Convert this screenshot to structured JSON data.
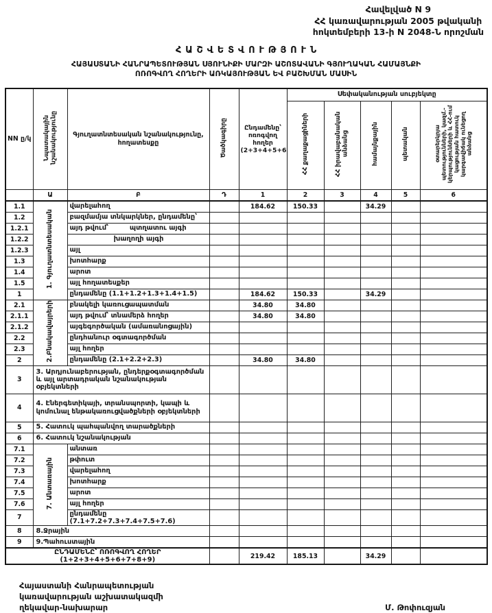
{
  "doc": {
    "appendix_line1": "Հավելված N  9",
    "appendix_line2": "ՀՀ կառավարության 2005 թվականի",
    "appendix_line3": "հոկտեմբերի 13-ի N 2048-Ն որոշման",
    "title": "ՀԱՇՎԵՏՎՈՒԹՅՈՒՆ",
    "subtitle_line1": "ՀԱՅԱՍՏԱՆԻ ՀԱՆՐԱՊԵՏՈՒԹՅԱՆ ՍՅՈՒՆԻՔԻ ՄԱՐԶԻ ԱՇՈՏԱՎԱՆԻ ԳՅՈՒՂԱԿԱՆ ՀԱՄԱՅՆՔԻ",
    "subtitle_line2": "ՈՌՈԳՎՈՂ ՀՈՂԵՐԻ ԱՌԿԱՅՈՒԹՅԱՆ ԵՎ ԲԱՇԽՄԱՆ ՄԱՍԻՆ"
  },
  "table": {
    "headers": {
      "nn": "NN ը/կ",
      "purpose": "Նպատակային նշանակությունը",
      "landtype": "Գյուղատնտեսական նշանակությունը, հողատեսքը",
      "code": "Ծածկագիրը",
      "total": "Ընդամենը՝ ոռոգվող հողեր (2+3+4+5+6)",
      "ownership": "Սեփականության սուբյեկտը",
      "own1": "ՀՀ քաղաքացիների",
      "own2": "ՀՀ իրավաբանական անձանց",
      "own3": "համայնքային",
      "own4": "պետական",
      "own5": "օտարերկրյա պետությունների, կազմ.-կերպությունների և ՀՀ-ում կացության հատուկ կարգավիճակ ունեցող անձանց"
    },
    "letter_row": [
      "",
      "Ա",
      "Բ",
      "Դ",
      "1",
      "2",
      "3",
      "4",
      "5",
      "6"
    ],
    "rows": [
      {
        "no": "1.1",
        "l": "վարելահող",
        "sec": {
          "l": "1. Գյուղատնտեսական",
          "span": 9
        },
        "v": [
          "",
          "184.62",
          "150.33",
          "",
          "34.29",
          "",
          ""
        ]
      },
      {
        "no": "1.2",
        "l": "բազմամյա տնկարկներ, ընդամենը՝"
      },
      {
        "no": "1.2.1",
        "l": "այդ թվում՝",
        "l2": "պտղատու այգի"
      },
      {
        "no": "1.2.2",
        "l": "",
        "l2": "խաղողի այգի"
      },
      {
        "no": "1.2.3",
        "l": "այլ"
      },
      {
        "no": "1.3",
        "l": "խոտհարք"
      },
      {
        "no": "1.4",
        "l": "արոտ"
      },
      {
        "no": "1.5",
        "l": "այլ հողատեսքեր"
      },
      {
        "no": "1",
        "l": "ընդամենը (1.1+1.2+1.3+1.4+1.5)",
        "v": [
          "",
          "184.62",
          "150.33",
          "",
          "34.29",
          "",
          ""
        ]
      },
      {
        "no": "2.1",
        "l": "բնակելի կառուցապատման",
        "sec": {
          "l": "2.Բնակավայրերի",
          "span": 6
        },
        "v": [
          "",
          "34.80",
          "34.80",
          "",
          "",
          "",
          ""
        ]
      },
      {
        "no": "2.1.1",
        "l": "այդ թվում՝ տնամերձ հողեր",
        "v": [
          "",
          "34.80",
          "34.80",
          "",
          "",
          "",
          ""
        ]
      },
      {
        "no": "2.1.2",
        "l": "այգեգործական (ամառանոցային)"
      },
      {
        "no": "2.2",
        "l": "ընդհանուր օգտագործման"
      },
      {
        "no": "2.3",
        "l": "այլ հողեր"
      },
      {
        "no": "2",
        "l": "ընդամենը (2.1+2.2+2.3)",
        "v": [
          "",
          "34.80",
          "34.80",
          "",
          "",
          "",
          ""
        ]
      },
      {
        "no": "3",
        "t": "wide",
        "tall": true,
        "l": "3. Արդյունաբերության, ընդերքօգտագործման  և այլ արտադրական նշանակության օբյեկտների"
      },
      {
        "no": "4",
        "t": "wide",
        "tall": true,
        "l": "4. Էներգետիկայի, տրանսպորտի, կապի և կոմունալ ենթակառուցվածքների օբյեկտների"
      },
      {
        "no": "5",
        "t": "wide",
        "l": "5. Հատուկ պահպանվող տարածքների"
      },
      {
        "no": "6",
        "t": "wide",
        "l": "6. Հատուկ նշանակության"
      },
      {
        "no": "7.1",
        "l": "անտառ",
        "sec": {
          "l": "7. Անտառային",
          "span": 7
        }
      },
      {
        "no": "7.2",
        "l": "թփուտ"
      },
      {
        "no": "7.3",
        "l": "վարելահող"
      },
      {
        "no": "7.4",
        "l": "խոտհարք"
      },
      {
        "no": "7.5",
        "l": "արոտ"
      },
      {
        "no": "7.6",
        "l": "այլ հողեր"
      },
      {
        "no": "7",
        "l": "ընդամենը (7.1+7.2+7.3+7.4+7.5+7.6)"
      },
      {
        "no": "8",
        "t": "wide",
        "l": "8.Ջրային"
      },
      {
        "no": "9",
        "t": "wide",
        "l": "9.Պահուստային"
      },
      {
        "t": "grand",
        "l": "ԸՆԴԱՄԵՆԸ՝ ՈՌՈԳՎՈՂ ՀՈՂԵՐ (1+2+3+4+5+6+7+8+9)",
        "v": [
          "",
          "219.42",
          "185.13",
          "",
          "34.29",
          "",
          ""
        ]
      }
    ]
  },
  "footer": {
    "left_line1": "Հայաստանի Հանրապետության",
    "left_line2": "կառավարության աշխատակազմի",
    "left_line3": "ղեկավար-նախարար",
    "signature": "Մ. Թոփուզյան"
  }
}
